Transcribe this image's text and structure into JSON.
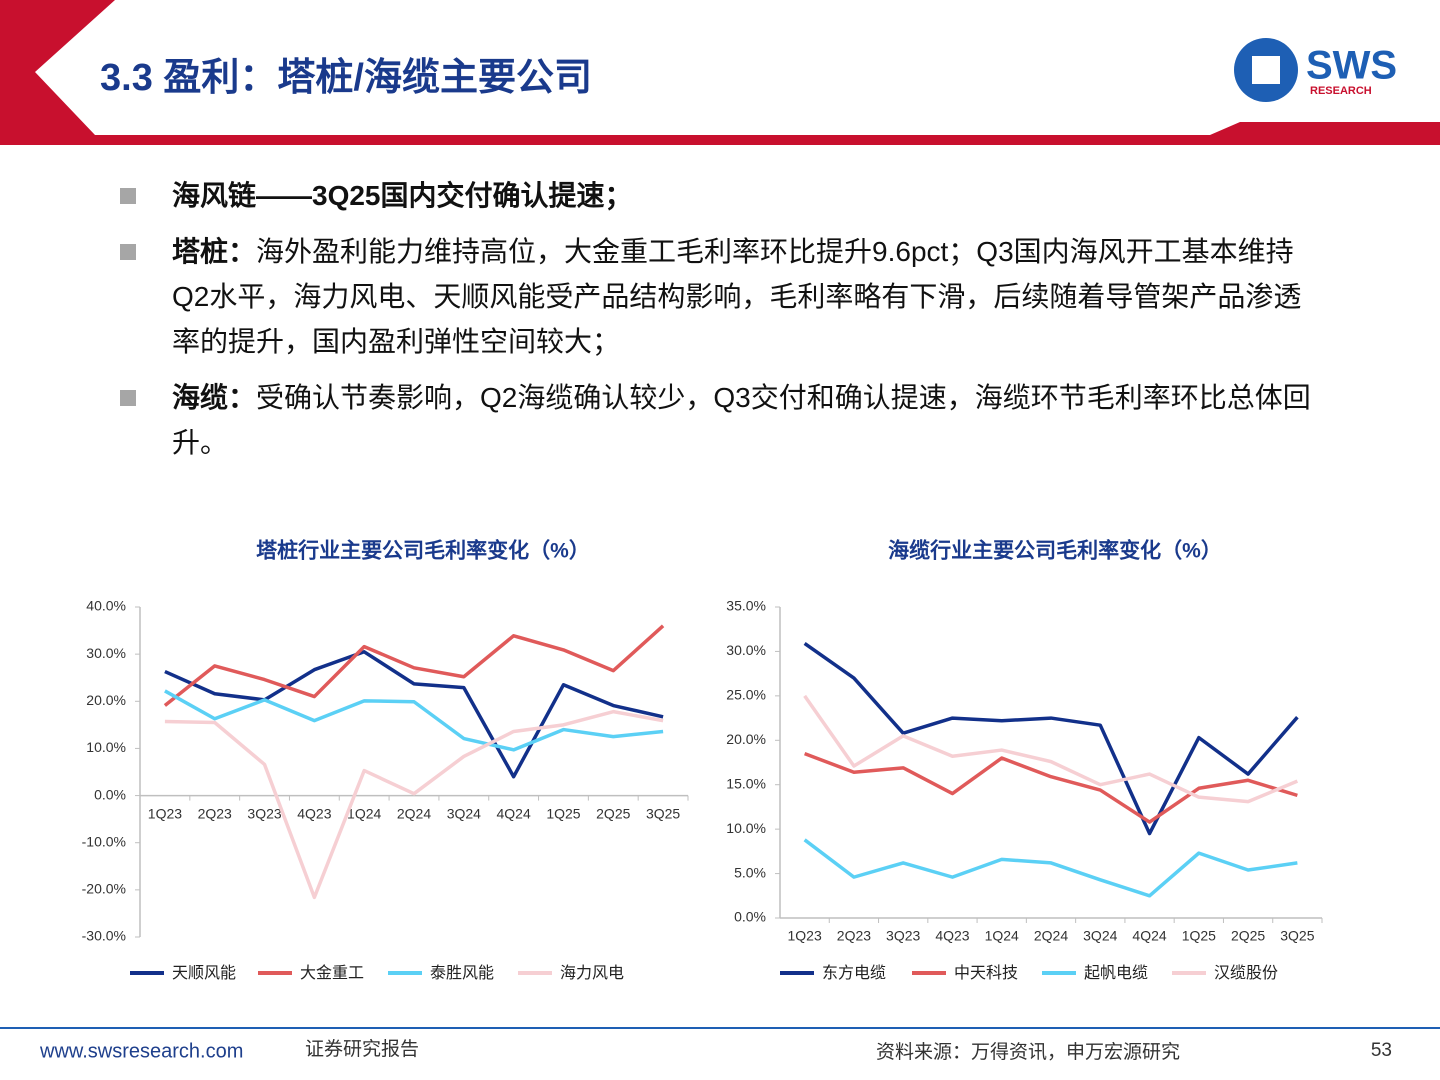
{
  "header": {
    "title": "3.3 盈利：塔桩/海缆主要公司",
    "logo_text": "SWS",
    "logo_subtext": "RESEARCH"
  },
  "bullets": [
    {
      "label": "海风链——3Q25国内交付确认提速；",
      "text": ""
    },
    {
      "label": "塔桩：",
      "text": "海外盈利能力维持高位，大金重工毛利率环比提升9.6pct；Q3国内海风开工基本维持Q2水平，海力风电、天顺风能受产品结构影响，毛利率略有下滑，后续随着导管架产品渗透率的提升，国内盈利弹性空间较大；"
    },
    {
      "label": "海缆：",
      "text": "受确认节奏影响，Q2海缆确认较少，Q3交付和确认提速，海缆环节毛利率环比总体回升。"
    }
  ],
  "chart_data": [
    {
      "type": "line",
      "title": "塔桩行业主要公司毛利率变化（%）",
      "categories": [
        "1Q23",
        "2Q23",
        "3Q23",
        "4Q23",
        "1Q24",
        "2Q24",
        "3Q24",
        "4Q24",
        "1Q25",
        "2Q25",
        "3Q25"
      ],
      "series": [
        {
          "name": "天顺风能",
          "color": "#12308a",
          "values": [
            26.3,
            21.6,
            20.3,
            26.7,
            30.5,
            23.7,
            22.9,
            4.0,
            23.5,
            19.1,
            16.7
          ]
        },
        {
          "name": "大金重工",
          "color": "#e05a5a",
          "values": [
            19.1,
            27.5,
            24.6,
            21.0,
            31.6,
            27.1,
            25.2,
            33.9,
            30.9,
            26.5,
            36.0
          ]
        },
        {
          "name": "泰胜风能",
          "color": "#5bd0f5",
          "values": [
            22.2,
            16.3,
            20.3,
            15.9,
            20.1,
            19.9,
            12.1,
            9.7,
            14.0,
            12.5,
            13.6
          ]
        },
        {
          "name": "海力风电",
          "color": "#f6cfd3",
          "values": [
            15.7,
            15.5,
            6.6,
            -21.6,
            5.3,
            0.4,
            8.3,
            13.6,
            15.0,
            17.8,
            15.9
          ]
        }
      ],
      "ylim": [
        -30,
        40
      ],
      "yticks": [
        {
          "value": -30,
          "label": "-30.0%"
        },
        {
          "value": -20,
          "label": "-20.0%"
        },
        {
          "value": -10,
          "label": "-10.0%"
        },
        {
          "value": 0,
          "label": "0.0%"
        },
        {
          "value": 10,
          "label": "10.0%"
        },
        {
          "value": 20,
          "label": "20.0%"
        },
        {
          "value": 30,
          "label": "30.0%"
        },
        {
          "value": 40,
          "label": "40.0%"
        }
      ],
      "grid": false
    },
    {
      "type": "line",
      "title": "海缆行业主要公司毛利率变化（%）",
      "categories": [
        "1Q23",
        "2Q23",
        "3Q23",
        "4Q23",
        "1Q24",
        "2Q24",
        "3Q24",
        "4Q24",
        "1Q25",
        "2Q25",
        "3Q25"
      ],
      "series": [
        {
          "name": "东方电缆",
          "color": "#12308a",
          "values": [
            30.9,
            27.0,
            20.8,
            22.5,
            22.2,
            22.5,
            21.7,
            9.5,
            20.3,
            16.2,
            22.6
          ]
        },
        {
          "name": "中天科技",
          "color": "#e05a5a",
          "values": [
            18.5,
            16.4,
            16.9,
            14.0,
            18.0,
            15.9,
            14.4,
            10.8,
            14.6,
            15.5,
            13.8
          ]
        },
        {
          "name": "起帆电缆",
          "color": "#5bd0f5",
          "values": [
            8.8,
            4.6,
            6.2,
            4.6,
            6.6,
            6.2,
            4.3,
            2.5,
            7.3,
            5.4,
            6.2
          ]
        },
        {
          "name": "汉缆股份",
          "color": "#f6cfd3",
          "values": [
            25.0,
            17.1,
            20.5,
            18.2,
            18.9,
            17.6,
            15.0,
            16.2,
            13.6,
            13.1,
            15.4
          ]
        }
      ],
      "ylim": [
        0,
        35
      ],
      "yticks": [
        {
          "value": 0,
          "label": "0.0%"
        },
        {
          "value": 5,
          "label": "5.0%"
        },
        {
          "value": 10,
          "label": "10.0%"
        },
        {
          "value": 15,
          "label": "15.0%"
        },
        {
          "value": 20,
          "label": "20.0%"
        },
        {
          "value": 25,
          "label": "25.0%"
        },
        {
          "value": 30,
          "label": "30.0%"
        },
        {
          "value": 35,
          "label": "35.0%"
        }
      ],
      "grid": false
    }
  ],
  "footer": {
    "website": "www.swsresearch.com",
    "report_type": "证券研究报告",
    "source": "资料来源：万得资讯，申万宏源研究",
    "page": "53"
  }
}
